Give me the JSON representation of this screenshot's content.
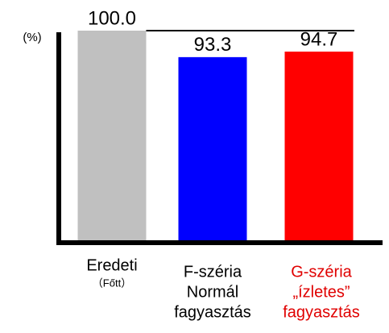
{
  "chart_data": {
    "type": "bar",
    "y_label": "(%)",
    "categories": [
      [
        "Eredeti",
        "（Főtt）"
      ],
      [
        "F-széria",
        "Normál",
        "fagyasztás"
      ],
      [
        "G-széria",
        "„ízletes”",
        "fagyasztás"
      ]
    ],
    "category_colors": [
      "#000000",
      "#000000",
      "#e00000"
    ],
    "values": [
      100,
      93.3,
      94.7
    ],
    "value_labels": [
      "100.0",
      "93.3",
      "94.7"
    ],
    "colors": [
      "#c0c0c0",
      "#0000ff",
      "#ff0000"
    ],
    "ylim": [
      47,
      100
    ]
  }
}
